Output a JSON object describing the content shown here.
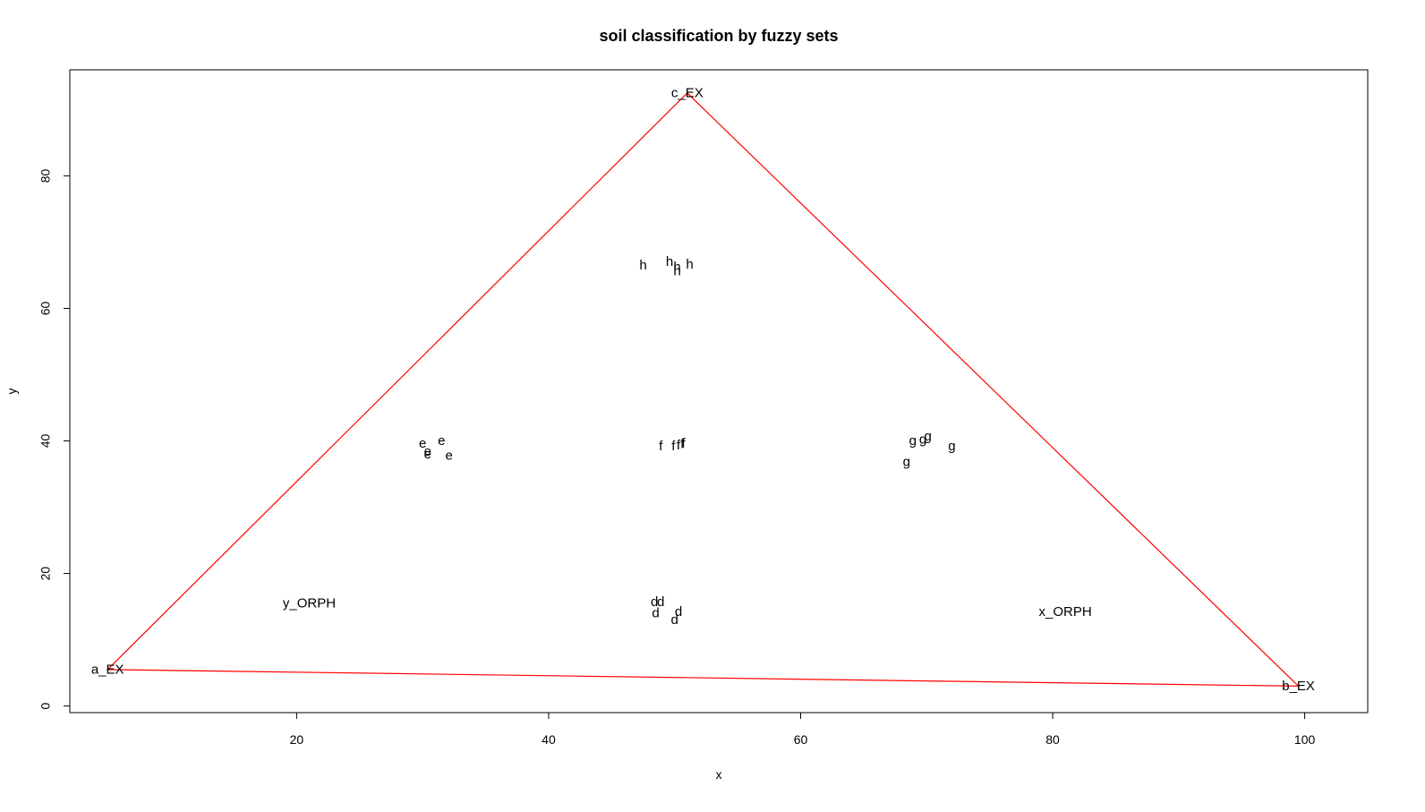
{
  "chart_data": {
    "type": "scatter",
    "title": "soil classification by fuzzy sets",
    "xlabel": "x",
    "ylabel": "y",
    "xlim": [
      2,
      105
    ],
    "ylim": [
      -1,
      96
    ],
    "xticks": [
      20,
      40,
      60,
      80,
      100
    ],
    "yticks": [
      0,
      20,
      40,
      60,
      80
    ],
    "grid": false,
    "colors": {
      "triangle": "#ff0000",
      "text": "#000000",
      "frame": "#000000"
    },
    "triangle": {
      "vertices": [
        {
          "x": 5.0,
          "y": 5.5
        },
        {
          "x": 51.0,
          "y": 92.5
        },
        {
          "x": 99.5,
          "y": 3.0
        }
      ]
    },
    "labels": [
      {
        "text": "c_EX",
        "x": 51.0,
        "y": 92.5
      },
      {
        "text": "a_EX",
        "x": 5.0,
        "y": 5.5
      },
      {
        "text": "b_EX",
        "x": 99.5,
        "y": 3.0
      },
      {
        "text": "y_ORPH",
        "x": 21.0,
        "y": 15.5
      },
      {
        "text": "x_ORPH",
        "x": 81.0,
        "y": 14.2
      },
      {
        "text": "h",
        "x": 47.5,
        "y": 66.5
      },
      {
        "text": "h",
        "x": 49.6,
        "y": 67.0
      },
      {
        "text": "h",
        "x": 50.2,
        "y": 66.2
      },
      {
        "text": "h",
        "x": 50.2,
        "y": 65.6
      },
      {
        "text": "h",
        "x": 51.2,
        "y": 66.6
      },
      {
        "text": "e",
        "x": 30.0,
        "y": 39.6
      },
      {
        "text": "e",
        "x": 30.4,
        "y": 38.4
      },
      {
        "text": "e",
        "x": 30.4,
        "y": 38.0
      },
      {
        "text": "e",
        "x": 31.5,
        "y": 40.0
      },
      {
        "text": "e",
        "x": 32.1,
        "y": 37.8
      },
      {
        "text": "f",
        "x": 48.9,
        "y": 39.2
      },
      {
        "text": "f",
        "x": 49.9,
        "y": 39.2
      },
      {
        "text": "f",
        "x": 50.3,
        "y": 39.3
      },
      {
        "text": "f",
        "x": 50.6,
        "y": 39.5
      },
      {
        "text": "f",
        "x": 50.7,
        "y": 39.6
      },
      {
        "text": "g",
        "x": 68.4,
        "y": 36.8
      },
      {
        "text": "g",
        "x": 68.9,
        "y": 40.0
      },
      {
        "text": "g",
        "x": 69.7,
        "y": 40.2
      },
      {
        "text": "g",
        "x": 70.1,
        "y": 40.7
      },
      {
        "text": "g",
        "x": 72.0,
        "y": 39.2
      },
      {
        "text": "d",
        "x": 48.4,
        "y": 15.7
      },
      {
        "text": "d",
        "x": 48.9,
        "y": 15.7
      },
      {
        "text": "d",
        "x": 48.5,
        "y": 14.0
      },
      {
        "text": "d",
        "x": 50.3,
        "y": 14.2
      },
      {
        "text": "d",
        "x": 50.0,
        "y": 13.0
      }
    ]
  }
}
